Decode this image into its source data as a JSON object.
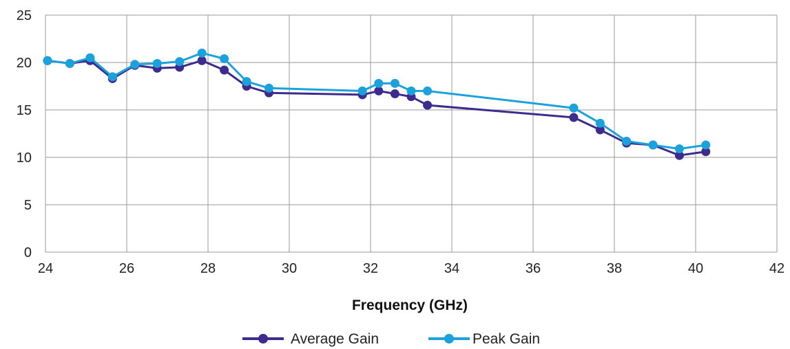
{
  "chart_data": {
    "type": "line",
    "xlabel": "Frequency (GHz)",
    "ylabel": "",
    "xlim": [
      24,
      42
    ],
    "ylim": [
      0,
      25
    ],
    "x_ticks": [
      "24",
      "26",
      "28",
      "30",
      "32",
      "34",
      "36",
      "38",
      "40",
      "42"
    ],
    "y_ticks": [
      "0",
      "5",
      "10",
      "15",
      "20",
      "25"
    ],
    "grid": true,
    "legend_position": "bottom",
    "series": [
      {
        "name": "Average Gain",
        "color": "#3d2b8e",
        "points": [
          [
            24.05,
            20.2
          ],
          [
            24.6,
            19.9
          ],
          [
            25.1,
            20.2
          ],
          [
            25.65,
            18.3
          ],
          [
            26.2,
            19.7
          ],
          [
            26.75,
            19.4
          ],
          [
            27.3,
            19.5
          ],
          [
            27.85,
            20.2
          ],
          [
            28.4,
            19.2
          ],
          [
            28.95,
            17.5
          ],
          [
            29.5,
            16.8
          ],
          [
            31.8,
            16.6
          ],
          [
            32.2,
            17.0
          ],
          [
            32.6,
            16.7
          ],
          [
            33.0,
            16.4
          ],
          [
            33.4,
            15.5
          ],
          [
            37.0,
            14.2
          ],
          [
            37.65,
            12.9
          ],
          [
            38.3,
            11.5
          ],
          [
            38.95,
            11.3
          ],
          [
            39.6,
            10.2
          ],
          [
            40.25,
            10.6
          ]
        ]
      },
      {
        "name": "Peak Gain",
        "color": "#1ba1dc",
        "points": [
          [
            24.05,
            20.2
          ],
          [
            24.6,
            19.9
          ],
          [
            25.1,
            20.5
          ],
          [
            25.65,
            18.5
          ],
          [
            26.2,
            19.8
          ],
          [
            26.75,
            19.9
          ],
          [
            27.3,
            20.1
          ],
          [
            27.85,
            21.0
          ],
          [
            28.4,
            20.4
          ],
          [
            28.95,
            18.0
          ],
          [
            29.5,
            17.3
          ],
          [
            31.8,
            17.0
          ],
          [
            32.2,
            17.8
          ],
          [
            32.6,
            17.8
          ],
          [
            33.0,
            17.0
          ],
          [
            33.4,
            17.0
          ],
          [
            37.0,
            15.2
          ],
          [
            37.65,
            13.6
          ],
          [
            38.3,
            11.7
          ],
          [
            38.95,
            11.3
          ],
          [
            39.6,
            10.9
          ],
          [
            40.25,
            11.3
          ]
        ]
      }
    ]
  }
}
